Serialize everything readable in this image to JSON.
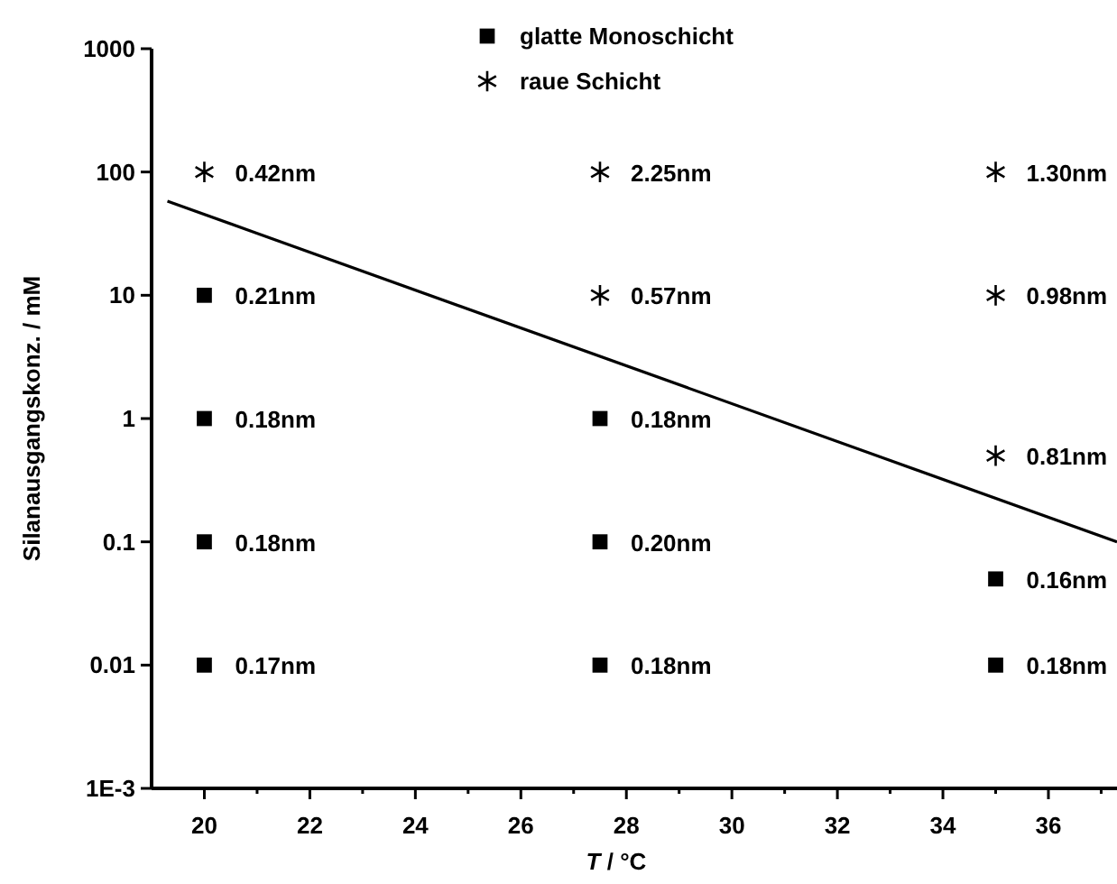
{
  "chart_data": {
    "type": "scatter",
    "xlabel": "T / °C",
    "ylabel": "Silanausgangskonz. / mM",
    "log": "y",
    "xlim": [
      19,
      37.3
    ],
    "ylim": [
      0.001,
      1000
    ],
    "xticks": [
      20,
      {
        "value": 21,
        "label": null
      },
      22,
      {
        "value": 23,
        "label": null
      },
      24,
      {
        "value": 25,
        "label": null
      },
      26,
      {
        "value": 27,
        "label": null
      },
      28,
      {
        "value": 29,
        "label": null
      },
      30,
      {
        "value": 31,
        "label": null
      },
      32,
      {
        "value": 33,
        "label": null
      },
      34,
      {
        "value": 35,
        "label": null
      },
      36,
      {
        "value": 37,
        "label": null
      }
    ],
    "yticks": [
      {
        "value": 0.001,
        "label": "1E-3"
      },
      0.01,
      0.1,
      1,
      10,
      100,
      1000
    ],
    "grid": false,
    "legend": "top",
    "series": [
      {
        "name": "glatte Monoschicht",
        "color": "#000000",
        "marker": "square",
        "x": [
          20,
          20,
          20,
          20,
          27.5,
          27.5,
          27.5,
          35,
          35
        ],
        "values": [
          10,
          1,
          0.1,
          0.01,
          1,
          0.1,
          0.01,
          0.05,
          0.01
        ]
      },
      {
        "name": "raue Schicht",
        "color": "#000000",
        "marker": "cross",
        "x": [
          20,
          27.5,
          27.5,
          35,
          35,
          35
        ],
        "values": [
          100,
          100,
          10,
          100,
          10,
          0.5
        ]
      },
      {
        "type": "line",
        "color": "#000000",
        "marker": "none",
        "line_style": "solid",
        "x": [
          19.3,
          37.3
        ],
        "values": [
          58,
          0.1
        ]
      }
    ],
    "annotations": [
      {
        "text": "0.42nm",
        "x": 20,
        "y": 100
      },
      {
        "text": "0.21nm",
        "x": 20,
        "y": 10
      },
      {
        "text": "0.18nm",
        "x": 20,
        "y": 1
      },
      {
        "text": "0.18nm",
        "x": 20,
        "y": 0.1
      },
      {
        "text": "0.17nm",
        "x": 20,
        "y": 0.01
      },
      {
        "text": "2.25nm",
        "x": 27.5,
        "y": 100
      },
      {
        "text": "0.57nm",
        "x": 27.5,
        "y": 10
      },
      {
        "text": "0.18nm",
        "x": 27.5,
        "y": 1
      },
      {
        "text": "0.20nm",
        "x": 27.5,
        "y": 0.1
      },
      {
        "text": "0.18nm",
        "x": 27.5,
        "y": 0.01
      },
      {
        "text": "1.30nm",
        "x": 35,
        "y": 100
      },
      {
        "text": "0.98nm",
        "x": 35,
        "y": 10
      },
      {
        "text": "0.81nm",
        "x": 35,
        "y": 0.5
      },
      {
        "text": "0.16nm",
        "x": 35,
        "y": 0.05
      },
      {
        "text": "0.18nm",
        "x": 35,
        "y": 0.01
      }
    ]
  }
}
